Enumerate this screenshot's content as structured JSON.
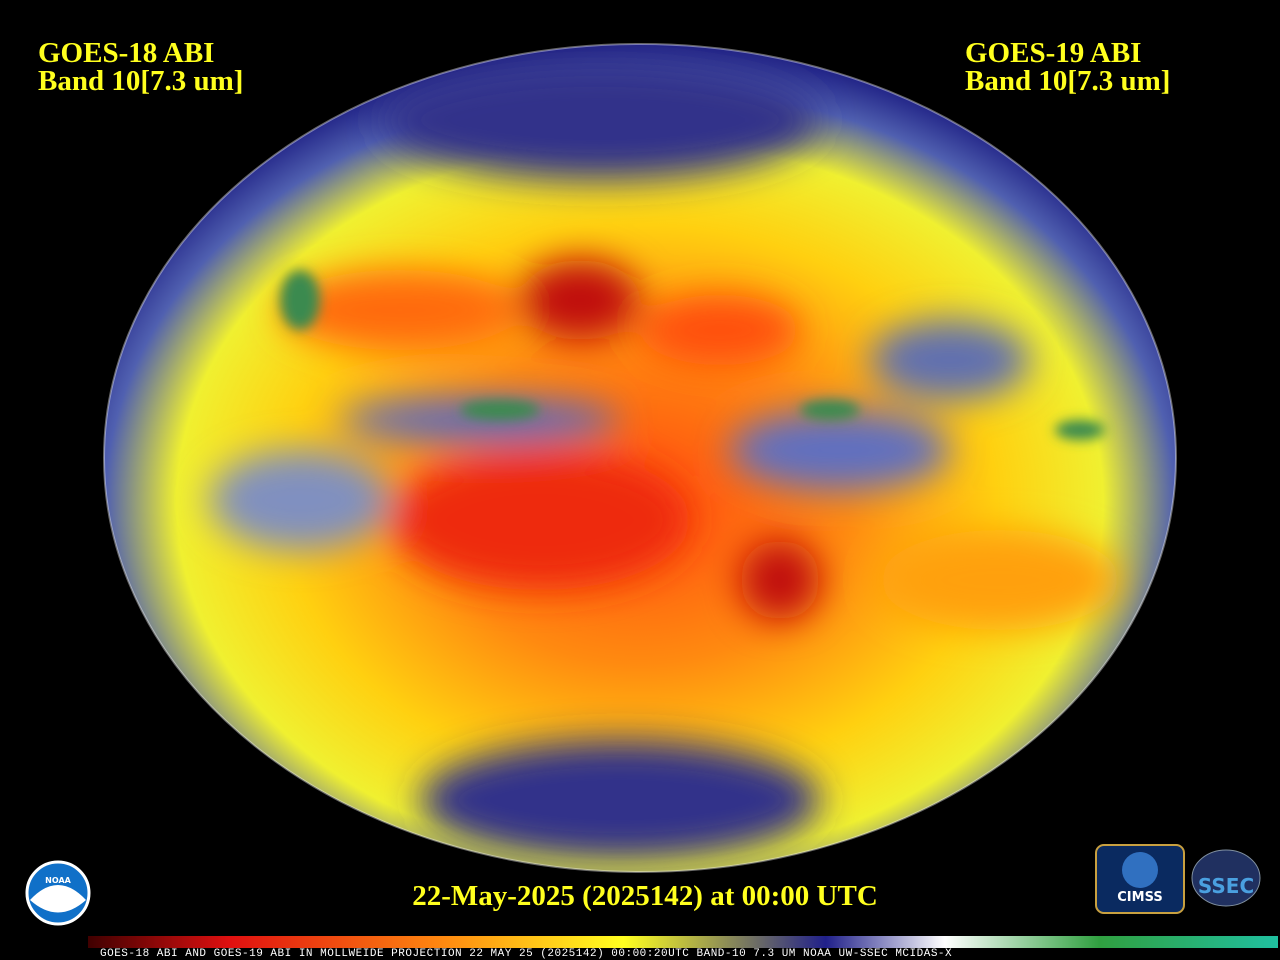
{
  "header": {
    "left": {
      "line1": "GOES-18 ABI",
      "line2": "Band 10[7.3 um]"
    },
    "right": {
      "line1": "GOES-19 ABI",
      "line2": "Band 10[7.3 um]"
    }
  },
  "footer": {
    "timestamp": "22-May-2025 (2025142) at 00:00 UTC",
    "caption": "GOES-18 ABI AND GOES-19 ABI IN MOLLWEIDE PROJECTION 22 MAY 25 (2025142) 00:00:20UTC BAND-10 7.3 UM NOAA UW-SSEC MCIDAS-X"
  },
  "logos": {
    "noaa": "NOAA",
    "cimss": "CIMSS",
    "ssec": "SSEC"
  }
}
